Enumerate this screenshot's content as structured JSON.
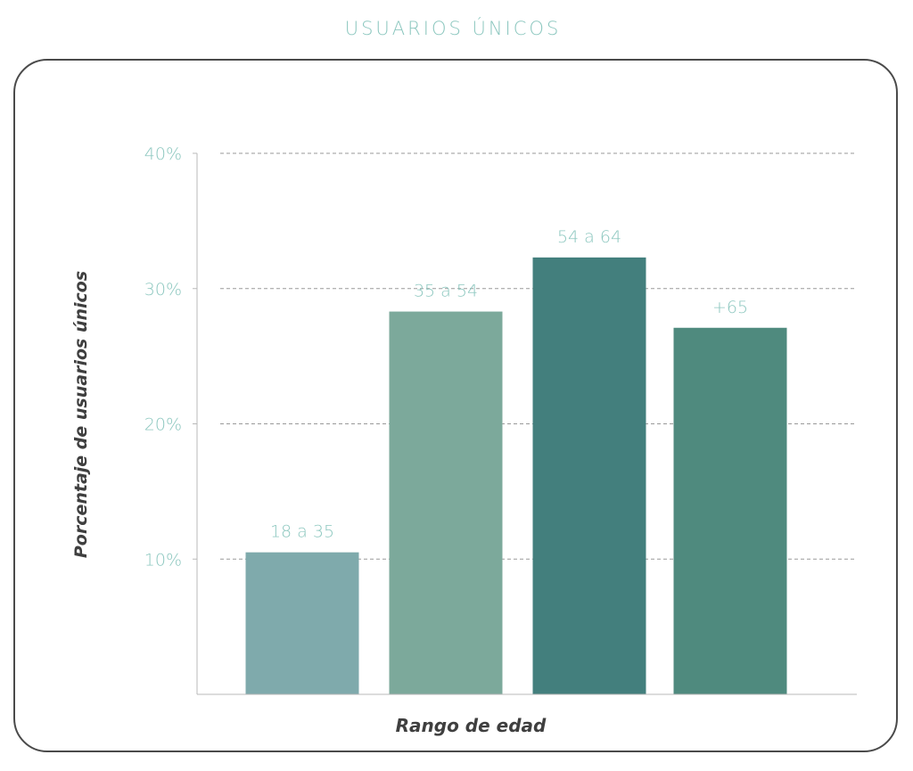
{
  "title": "USUARIOS ÚNICOS",
  "chart_data": {
    "type": "bar",
    "categories": [
      "18 a 35",
      "35 a 54",
      "54 a 64",
      "+65"
    ],
    "values": [
      10.5,
      28.3,
      32.3,
      27.1
    ],
    "colors": [
      "#7faaac",
      "#7ca99b",
      "#437f7d",
      "#4f8a7e"
    ],
    "title": "USUARIOS ÚNICOS",
    "xlabel": "Rango de edad",
    "ylabel": "Porcentaje de usuarios únicos",
    "ylim": [
      0,
      40
    ],
    "yticks": [
      10,
      20,
      30,
      40
    ],
    "ytick_labels": [
      "10%",
      "20%",
      "30%",
      "40%"
    ],
    "grid": true,
    "grid_style": "dashed",
    "legend": "none",
    "label_color": "#8cc7bf"
  }
}
